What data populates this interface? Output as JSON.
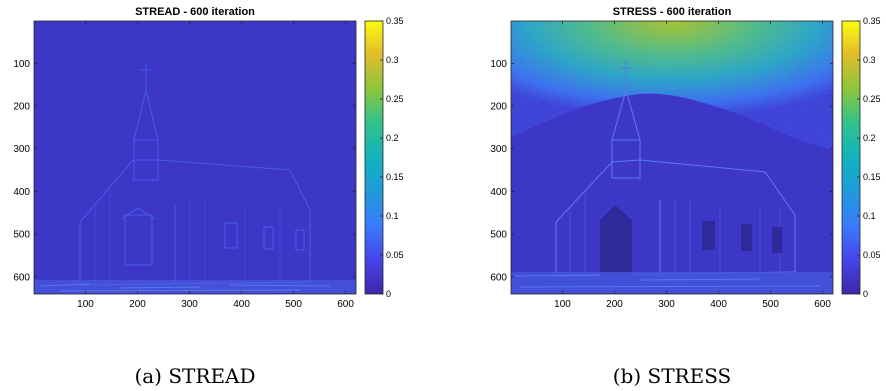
{
  "chart_data": [
    {
      "type": "heatmap",
      "title": "STREAD - 600 iteration",
      "caption": "(a) STREAD",
      "x_ticks": [
        100,
        200,
        300,
        400,
        500,
        600
      ],
      "y_ticks": [
        100,
        200,
        300,
        400,
        500,
        600
      ],
      "xlim": [
        1,
        620
      ],
      "ylim": [
        1,
        640
      ],
      "colorbar": {
        "range": [
          0,
          0.35
        ],
        "ticks": [
          0,
          0.05,
          0.1,
          0.15,
          0.2,
          0.25,
          0.3,
          0.35
        ],
        "tick_labels": [
          "0",
          "0.05",
          "0.1",
          "0.15",
          "0.2",
          "0.25",
          "0.3",
          "0.35"
        ],
        "colormap": "parula"
      },
      "background_level": 0.01,
      "sky_level": 0.01
    },
    {
      "type": "heatmap",
      "title": "STRESS - 600 iteration",
      "caption": "(b) STRESS",
      "x_ticks": [
        100,
        200,
        300,
        400,
        500,
        600
      ],
      "y_ticks": [
        100,
        200,
        300,
        400,
        500,
        600
      ],
      "xlim": [
        1,
        620
      ],
      "ylim": [
        1,
        640
      ],
      "colorbar": {
        "range": [
          0,
          0.35
        ],
        "ticks": [
          0,
          0.05,
          0.1,
          0.15,
          0.2,
          0.25,
          0.3,
          0.35
        ],
        "tick_labels": [
          "0",
          "0.05",
          "0.1",
          "0.15",
          "0.2",
          "0.25",
          "0.3",
          "0.35"
        ],
        "colormap": "parula"
      },
      "background_level": 0.01,
      "sky_level": 0.22
    }
  ],
  "colors": {
    "parula_low": "#3e26a8",
    "parula_mid": "#17b7c5",
    "parula_high": "#f9fb0e"
  }
}
